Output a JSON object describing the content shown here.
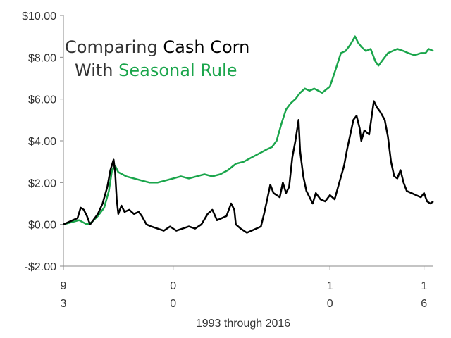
{
  "chart_data": {
    "type": "line",
    "title": {
      "line1_part1": "Comparing ",
      "line1_part2": "Cash Corn",
      "line2_part1": "With ",
      "line2_part2": "Seasonal Rule"
    },
    "xlabel": "1993 through 2016",
    "ylabel": "",
    "ylim": [
      -2,
      10
    ],
    "y_ticks": [
      {
        "value": 10,
        "label": "$10.00"
      },
      {
        "value": 8,
        "label": "$8.00"
      },
      {
        "value": 6,
        "label": "$6.00"
      },
      {
        "value": 4,
        "label": "$4.00"
      },
      {
        "value": 2,
        "label": "$2.00"
      },
      {
        "value": 0,
        "label": "$0.00"
      },
      {
        "value": -2,
        "label": "-$2.00"
      }
    ],
    "xlim": [
      1993,
      2016.6
    ],
    "x_ticks": [
      {
        "value": 1993,
        "line1": "9",
        "line2": "3"
      },
      {
        "value": 2000,
        "line1": "0",
        "line2": "0"
      },
      {
        "value": 2010,
        "line1": "1",
        "line2": "0"
      },
      {
        "value": 2016,
        "line1": "1",
        "line2": "6"
      }
    ],
    "grid": false,
    "colors": {
      "cash": "#000000",
      "seasonal": "#1aa54b",
      "text": "#333333",
      "axis": "#888888"
    },
    "series": [
      {
        "name": "Cash Corn",
        "color": "#000000",
        "points": [
          [
            1993.0,
            0.0
          ],
          [
            1993.3,
            0.1
          ],
          [
            1993.6,
            0.2
          ],
          [
            1993.9,
            0.3
          ],
          [
            1994.1,
            0.8
          ],
          [
            1994.3,
            0.7
          ],
          [
            1994.5,
            0.4
          ],
          [
            1994.7,
            0.0
          ],
          [
            1994.9,
            0.2
          ],
          [
            1995.2,
            0.5
          ],
          [
            1995.5,
            1.0
          ],
          [
            1995.8,
            1.8
          ],
          [
            1996.0,
            2.6
          ],
          [
            1996.2,
            3.1
          ],
          [
            1996.3,
            2.5
          ],
          [
            1996.4,
            1.2
          ],
          [
            1996.5,
            0.5
          ],
          [
            1996.7,
            0.9
          ],
          [
            1996.9,
            0.6
          ],
          [
            1997.2,
            0.7
          ],
          [
            1997.5,
            0.5
          ],
          [
            1997.8,
            0.6
          ],
          [
            1998.0,
            0.4
          ],
          [
            1998.3,
            0.0
          ],
          [
            1998.6,
            -0.1
          ],
          [
            1999.0,
            -0.2
          ],
          [
            1999.4,
            -0.3
          ],
          [
            1999.8,
            -0.1
          ],
          [
            2000.2,
            -0.3
          ],
          [
            2000.6,
            -0.2
          ],
          [
            2001.0,
            -0.1
          ],
          [
            2001.4,
            -0.2
          ],
          [
            2001.8,
            0.0
          ],
          [
            2002.2,
            0.5
          ],
          [
            2002.5,
            0.7
          ],
          [
            2002.8,
            0.2
          ],
          [
            2003.1,
            0.3
          ],
          [
            2003.4,
            0.4
          ],
          [
            2003.7,
            1.0
          ],
          [
            2003.9,
            0.7
          ],
          [
            2004.0,
            0.0
          ],
          [
            2004.3,
            -0.2
          ],
          [
            2004.7,
            -0.4
          ],
          [
            2005.0,
            -0.3
          ],
          [
            2005.3,
            -0.2
          ],
          [
            2005.6,
            -0.1
          ],
          [
            2005.8,
            0.5
          ],
          [
            2006.0,
            1.2
          ],
          [
            2006.2,
            1.9
          ],
          [
            2006.4,
            1.5
          ],
          [
            2006.6,
            1.4
          ],
          [
            2006.8,
            1.3
          ],
          [
            2007.0,
            2.0
          ],
          [
            2007.2,
            1.5
          ],
          [
            2007.4,
            1.8
          ],
          [
            2007.6,
            3.2
          ],
          [
            2007.8,
            4.0
          ],
          [
            2008.0,
            5.0
          ],
          [
            2008.1,
            3.5
          ],
          [
            2008.3,
            2.3
          ],
          [
            2008.5,
            1.6
          ],
          [
            2008.7,
            1.3
          ],
          [
            2008.9,
            1.0
          ],
          [
            2009.1,
            1.5
          ],
          [
            2009.4,
            1.2
          ],
          [
            2009.7,
            1.1
          ],
          [
            2010.0,
            1.4
          ],
          [
            2010.3,
            1.2
          ],
          [
            2010.6,
            2.0
          ],
          [
            2010.9,
            2.8
          ],
          [
            2011.1,
            3.6
          ],
          [
            2011.3,
            4.3
          ],
          [
            2011.5,
            5.0
          ],
          [
            2011.7,
            5.2
          ],
          [
            2011.9,
            4.6
          ],
          [
            2012.0,
            4.0
          ],
          [
            2012.2,
            4.5
          ],
          [
            2012.5,
            4.3
          ],
          [
            2012.8,
            5.9
          ],
          [
            2013.0,
            5.6
          ],
          [
            2013.2,
            5.4
          ],
          [
            2013.5,
            5.0
          ],
          [
            2013.7,
            4.2
          ],
          [
            2013.9,
            3.0
          ],
          [
            2014.1,
            2.3
          ],
          [
            2014.3,
            2.2
          ],
          [
            2014.5,
            2.6
          ],
          [
            2014.7,
            2.0
          ],
          [
            2014.9,
            1.6
          ],
          [
            2015.2,
            1.5
          ],
          [
            2015.5,
            1.4
          ],
          [
            2015.8,
            1.3
          ],
          [
            2016.0,
            1.5
          ],
          [
            2016.2,
            1.1
          ],
          [
            2016.4,
            1.0
          ],
          [
            2016.6,
            1.1
          ]
        ]
      },
      {
        "name": "Seasonal Rule",
        "color": "#1aa54b",
        "points": [
          [
            1993.0,
            0.0
          ],
          [
            1993.5,
            0.1
          ],
          [
            1994.0,
            0.2
          ],
          [
            1994.5,
            0.0
          ],
          [
            1994.8,
            0.1
          ],
          [
            1995.2,
            0.4
          ],
          [
            1995.6,
            0.8
          ],
          [
            1995.9,
            1.6
          ],
          [
            1996.1,
            2.6
          ],
          [
            1996.3,
            2.8
          ],
          [
            1996.5,
            2.5
          ],
          [
            1997.0,
            2.3
          ],
          [
            1997.5,
            2.2
          ],
          [
            1998.0,
            2.1
          ],
          [
            1998.5,
            2.0
          ],
          [
            1999.0,
            2.0
          ],
          [
            1999.5,
            2.1
          ],
          [
            2000.0,
            2.2
          ],
          [
            2000.5,
            2.3
          ],
          [
            2001.0,
            2.2
          ],
          [
            2001.5,
            2.3
          ],
          [
            2002.0,
            2.4
          ],
          [
            2002.5,
            2.3
          ],
          [
            2003.0,
            2.4
          ],
          [
            2003.5,
            2.6
          ],
          [
            2004.0,
            2.9
          ],
          [
            2004.5,
            3.0
          ],
          [
            2005.0,
            3.2
          ],
          [
            2005.5,
            3.4
          ],
          [
            2006.0,
            3.6
          ],
          [
            2006.3,
            3.7
          ],
          [
            2006.6,
            4.0
          ],
          [
            2006.9,
            4.8
          ],
          [
            2007.2,
            5.5
          ],
          [
            2007.5,
            5.8
          ],
          [
            2007.8,
            6.0
          ],
          [
            2008.1,
            6.3
          ],
          [
            2008.4,
            6.5
          ],
          [
            2008.7,
            6.4
          ],
          [
            2009.0,
            6.5
          ],
          [
            2009.5,
            6.3
          ],
          [
            2010.0,
            6.6
          ],
          [
            2010.4,
            7.5
          ],
          [
            2010.7,
            8.2
          ],
          [
            2011.0,
            8.3
          ],
          [
            2011.3,
            8.6
          ],
          [
            2011.6,
            9.0
          ],
          [
            2011.8,
            8.7
          ],
          [
            2012.0,
            8.5
          ],
          [
            2012.3,
            8.3
          ],
          [
            2012.6,
            8.4
          ],
          [
            2012.9,
            7.8
          ],
          [
            2013.1,
            7.6
          ],
          [
            2013.4,
            7.9
          ],
          [
            2013.7,
            8.2
          ],
          [
            2014.0,
            8.3
          ],
          [
            2014.3,
            8.4
          ],
          [
            2014.7,
            8.3
          ],
          [
            2015.0,
            8.2
          ],
          [
            2015.4,
            8.1
          ],
          [
            2015.8,
            8.2
          ],
          [
            2016.1,
            8.2
          ],
          [
            2016.3,
            8.4
          ],
          [
            2016.6,
            8.3
          ]
        ]
      }
    ]
  }
}
